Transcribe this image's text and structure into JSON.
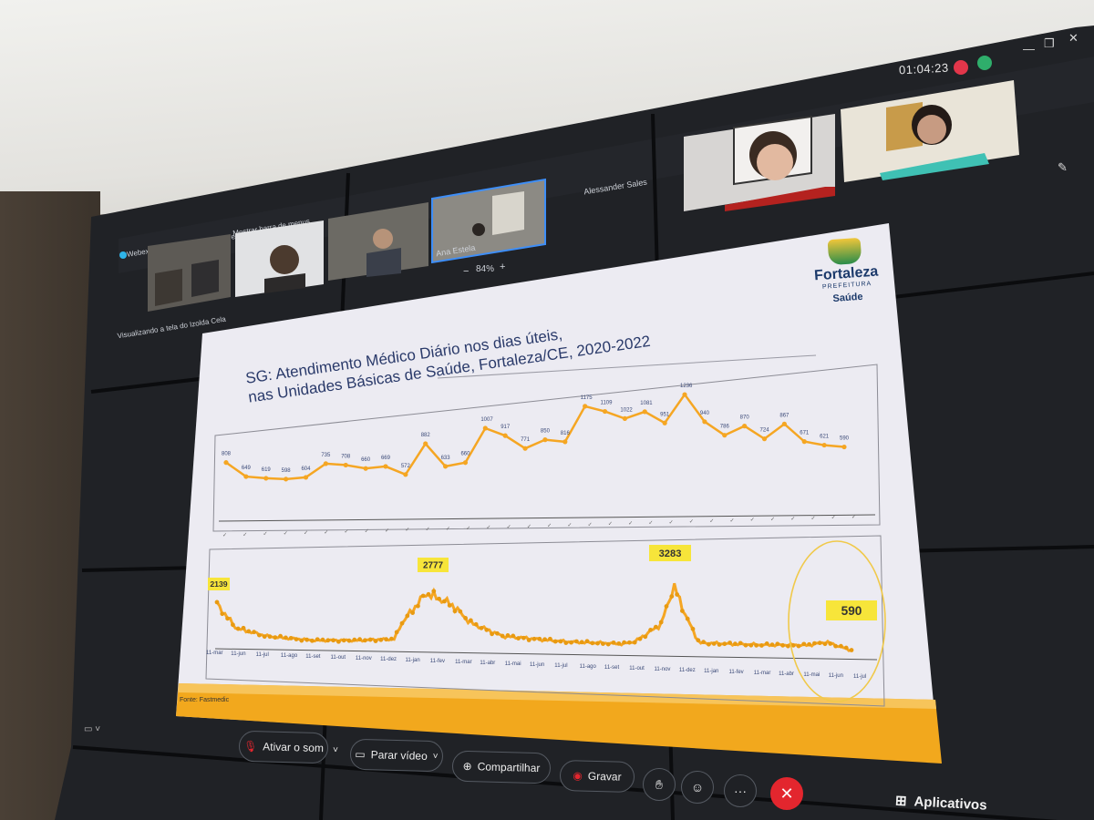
{
  "meeting": {
    "app_name": "Webex",
    "info_label": "Informações sobre a reunião",
    "menu_bar_label": "Mostrar barra de menus",
    "sharing_label": "Visualizando a tela do Izolda Cela",
    "timer": "01:04:23",
    "zoom_level": "84%",
    "zoom_minus": "−",
    "zoom_plus": "+",
    "colors": {
      "record_dot": "#e2364a",
      "signal": "#2fae6b",
      "leave": "#e3262e"
    }
  },
  "participants": [
    {
      "name": ""
    },
    {
      "name": ""
    },
    {
      "name": ""
    },
    {
      "name": "Ana Estela"
    },
    {
      "name": "Alessander Sales"
    },
    {
      "name": ""
    },
    {
      "name": ""
    }
  ],
  "controls": {
    "mute_label": "Ativar o som",
    "video_label": "Parar vídeo",
    "share_label": "Compartilhar",
    "record_label": "Gravar",
    "apps_label": "Aplicativos"
  },
  "slide": {
    "logo_name": "Fortaleza",
    "logo_sub": "PREFEITURA",
    "logo_dept": "Saúde",
    "title_line1": "SG: Atendimento Médico Diário nos dias úteis,",
    "title_line2": "nas Unidades Básicas de Saúde, Fortaleza/CE, 2020-2022",
    "source": "Fonte: Fastmedic",
    "accent": "#f5a623"
  },
  "chart_data": [
    {
      "type": "line",
      "title": "",
      "values": [
        808,
        649,
        619,
        598,
        604,
        735,
        708,
        660,
        669,
        572,
        882,
        633,
        660,
        1007,
        917,
        771,
        850,
        816,
        1175,
        1109,
        1022,
        1081,
        951,
        1236,
        940,
        786,
        870,
        724,
        867,
        671,
        621,
        590
      ],
      "x_tick_count": 32,
      "grid": false
    },
    {
      "type": "line",
      "title": "",
      "x_labels": [
        "11-mar",
        "11-jun",
        "11-jul",
        "11-ago",
        "11-set",
        "11-out",
        "11-nov",
        "11-dez",
        "11-jan",
        "11-fev",
        "11-mar",
        "11-abr",
        "11-mai",
        "11-jun",
        "11-jul",
        "11-ago",
        "11-set",
        "11-out",
        "11-nov",
        "11-dez",
        "11-jan",
        "11-fev",
        "11-mar",
        "11-abr",
        "11-mai",
        "11-jun",
        "11-jul"
      ],
      "annotated_values": [
        2139,
        2777,
        3283,
        590
      ],
      "highlighted_value": 590,
      "grid": false
    }
  ]
}
